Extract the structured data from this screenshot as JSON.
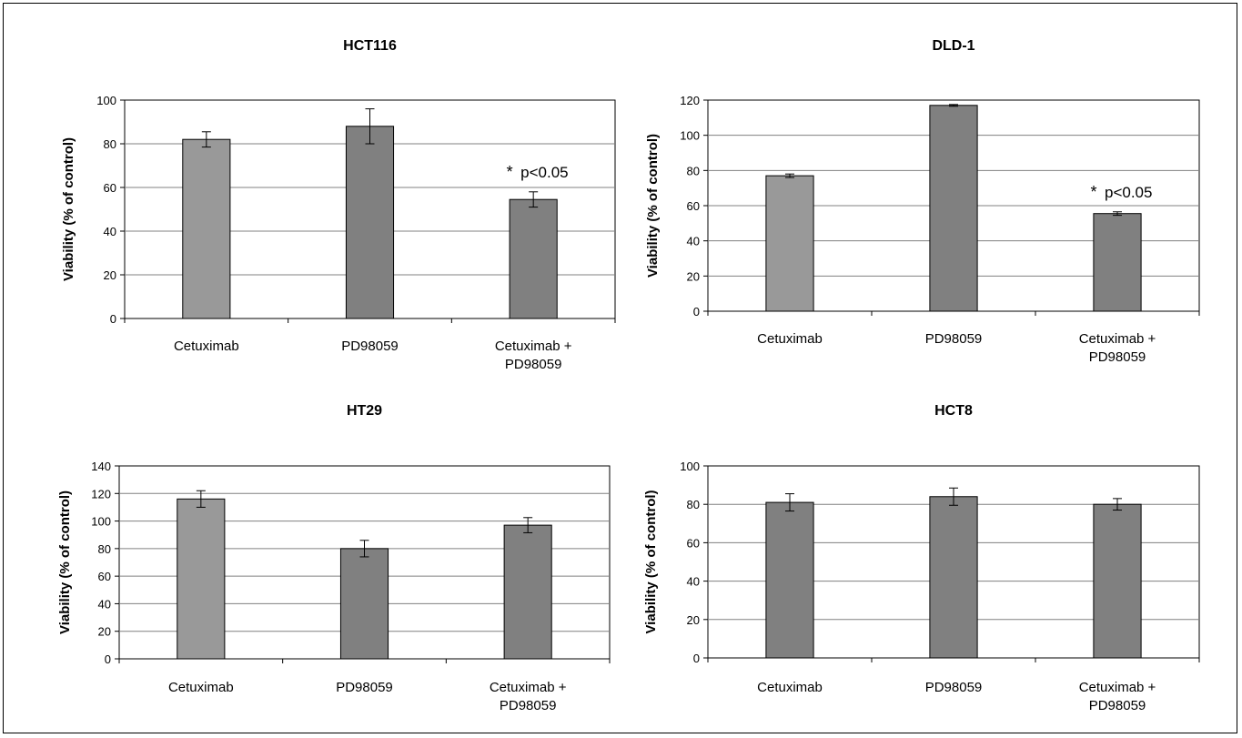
{
  "colors": {
    "bar_light": "#999999",
    "bar_dark": "#808080",
    "axis": "#000000",
    "grid": "#808080"
  },
  "chart_data": [
    {
      "type": "bar",
      "title": "HCT116",
      "ylabel": "Viability (% of control)",
      "xlabel": "",
      "ylim": [
        0,
        100
      ],
      "yticks": [
        "0",
        "20",
        "40",
        "60",
        "80",
        "100"
      ],
      "categories": [
        "Cetuximab",
        "PD98059",
        "Cetuximab + PD98059"
      ],
      "category_lines": [
        [
          "Cetuximab"
        ],
        [
          "PD98059"
        ],
        [
          "Cetuximab +",
          "PD98059"
        ]
      ],
      "values": [
        82,
        88,
        54.5
      ],
      "errors": [
        3.5,
        8,
        3.5
      ],
      "bar_colors": [
        "bar_light",
        "bar_dark",
        "bar_dark"
      ],
      "grid": true,
      "annotations": [
        {
          "bar": 2,
          "star": "*",
          "text": "p<0.05"
        }
      ]
    },
    {
      "type": "bar",
      "title": "DLD-1",
      "ylabel": "Viability (% of control)",
      "xlabel": "",
      "ylim": [
        0,
        120
      ],
      "yticks": [
        "0",
        "20",
        "40",
        "60",
        "80",
        "100",
        "120"
      ],
      "categories": [
        "Cetuximab",
        "PD98059",
        "Cetuximab + PD98059"
      ],
      "category_lines": [
        [
          "Cetuximab"
        ],
        [
          "PD98059"
        ],
        [
          "Cetuximab +",
          "PD98059"
        ]
      ],
      "values": [
        77,
        117,
        55.5
      ],
      "errors": [
        1,
        0.5,
        1
      ],
      "bar_colors": [
        "bar_light",
        "bar_dark",
        "bar_dark"
      ],
      "grid": true,
      "annotations": [
        {
          "bar": 2,
          "star": "*",
          "text": "p<0.05"
        }
      ]
    },
    {
      "type": "bar",
      "title": "HT29",
      "ylabel": "Viability (% of control)",
      "xlabel": "",
      "ylim": [
        0,
        140
      ],
      "yticks": [
        "0",
        "20",
        "40",
        "60",
        "80",
        "100",
        "120",
        "140"
      ],
      "categories": [
        "Cetuximab",
        "PD98059",
        "Cetuximab + PD98059"
      ],
      "category_lines": [
        [
          "Cetuximab"
        ],
        [
          "PD98059"
        ],
        [
          "Cetuximab +",
          "PD98059"
        ]
      ],
      "values": [
        116,
        80,
        97
      ],
      "errors": [
        6,
        6,
        5.5
      ],
      "bar_colors": [
        "bar_light",
        "bar_dark",
        "bar_dark"
      ],
      "grid": true,
      "annotations": []
    },
    {
      "type": "bar",
      "title": "HCT8",
      "ylabel": "Viability (% of control)",
      "xlabel": "",
      "ylim": [
        0,
        100
      ],
      "yticks": [
        "0",
        "20",
        "40",
        "60",
        "80",
        "100"
      ],
      "categories": [
        "Cetuximab",
        "PD98059",
        "Cetuximab + PD98059"
      ],
      "category_lines": [
        [
          "Cetuximab"
        ],
        [
          "PD98059"
        ],
        [
          "Cetuximab +",
          "PD98059"
        ]
      ],
      "values": [
        81,
        84,
        80
      ],
      "errors": [
        4.5,
        4.5,
        3
      ],
      "bar_colors": [
        "bar_dark",
        "bar_dark",
        "bar_dark"
      ],
      "grid": true,
      "annotations": []
    }
  ]
}
